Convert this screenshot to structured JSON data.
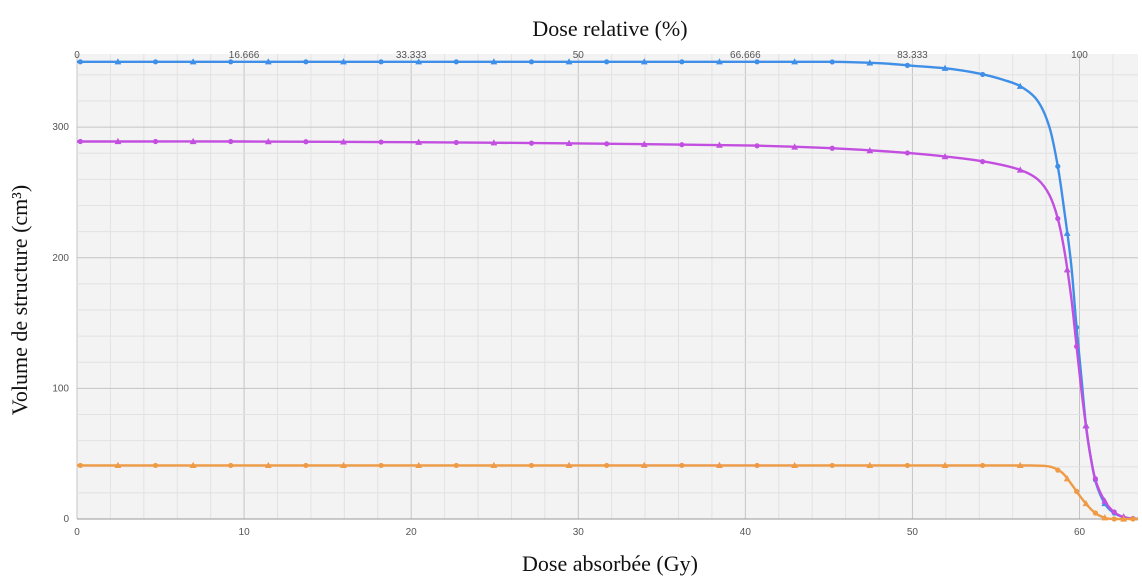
{
  "chart_data": {
    "type": "line",
    "title": "",
    "xlabel": "Dose absorbée (Gy)",
    "ylabel": "Volume de structure (cm³)",
    "x2label": "Dose relative (%)",
    "xlim": [
      0,
      63.5
    ],
    "ylim": [
      0,
      356
    ],
    "x_ticks": [
      0,
      10,
      20,
      30,
      40,
      50,
      60
    ],
    "y_ticks": [
      0,
      100,
      200,
      300
    ],
    "x2_ticks": [
      {
        "label": "0",
        "x": 0
      },
      {
        "label": "16.666",
        "x": 10
      },
      {
        "label": "33.333",
        "x": 20
      },
      {
        "label": "50",
        "x": 30
      },
      {
        "label": "66.666",
        "x": 40
      },
      {
        "label": "83.333",
        "x": 50
      },
      {
        "label": "100",
        "x": 60
      }
    ],
    "grid": true,
    "legend": "none",
    "series": [
      {
        "color": "#3f8fe8",
        "x": [
          0,
          10,
          20,
          30,
          40,
          45,
          48,
          50,
          52,
          54,
          55.5,
          56.5,
          57.5,
          58.2,
          58.7,
          59.1,
          59.5,
          59.8,
          60.1,
          60.4,
          60.7,
          61.0,
          61.5,
          62,
          62.5,
          63,
          63.5
        ],
        "values": [
          350,
          350,
          350,
          350,
          350,
          350,
          349,
          347,
          345,
          341,
          336,
          331,
          320,
          300,
          270,
          235,
          195,
          150,
          110,
          70,
          45,
          27,
          12,
          5,
          2,
          0.5,
          0
        ]
      },
      {
        "color": "#c34fe0",
        "x": [
          0,
          10,
          20,
          30,
          40,
          45,
          50,
          53,
          55,
          56.5,
          57.5,
          58.2,
          58.7,
          59.1,
          59.5,
          59.8,
          60.1,
          60.4,
          60.7,
          61.0,
          61.5,
          62,
          62.5,
          63,
          63.5
        ],
        "values": [
          289,
          289,
          288.5,
          287.5,
          286,
          284,
          280,
          276,
          272,
          267,
          260,
          248,
          230,
          205,
          170,
          135,
          100,
          70,
          45,
          28,
          14,
          6,
          2,
          0.5,
          0
        ]
      },
      {
        "color": "#ef9a45",
        "x": [
          0,
          10,
          20,
          30,
          40,
          50,
          55,
          57,
          58,
          58.5,
          59,
          59.5,
          60,
          60.5,
          61,
          61.5,
          62,
          63.5
        ],
        "values": [
          41,
          41,
          41,
          41,
          41,
          41,
          41,
          41,
          40.5,
          39,
          35,
          27,
          18,
          10,
          4,
          1,
          0,
          0
        ]
      }
    ]
  }
}
